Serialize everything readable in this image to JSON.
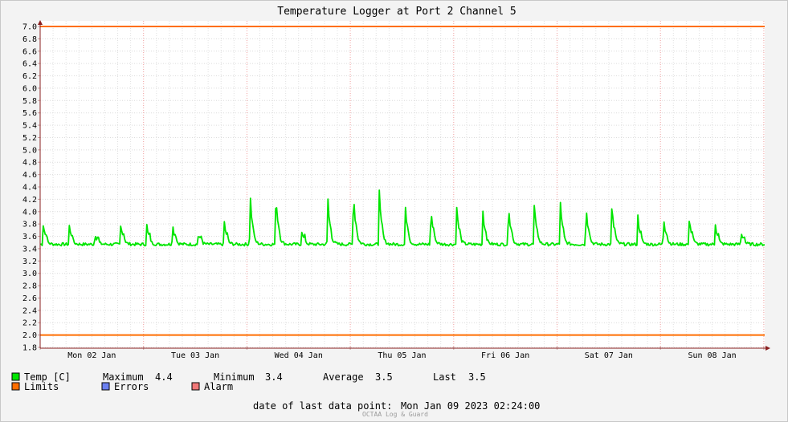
{
  "chart_data": {
    "type": "line",
    "title": "Temperature Logger at Port 2 Channel 5",
    "xlabel": "",
    "ylabel": "",
    "ylim": [
      1.8,
      7.0
    ],
    "yticks": [
      "1.8",
      "2.0",
      "2.2",
      "2.4",
      "2.6",
      "2.8",
      "3.0",
      "3.2",
      "3.4",
      "3.6",
      "3.8",
      "4.0",
      "4.2",
      "4.4",
      "4.6",
      "4.8",
      "5.0",
      "5.2",
      "5.4",
      "5.6",
      "5.8",
      "6.0",
      "6.2",
      "6.4",
      "6.6",
      "6.8",
      "7.0"
    ],
    "x_categories": [
      "Mon 02 Jan",
      "Tue 03 Jan",
      "Wed 04 Jan",
      "Thu 05 Jan",
      "Fri 06 Jan",
      "Sat 07 Jan",
      "Sun 08 Jan"
    ],
    "grid": true,
    "limits": {
      "upper": 7.0,
      "lower": 2.0
    },
    "baseline": 3.47,
    "series": [
      {
        "name": "Temp [C]",
        "color": "#00e500",
        "peak_days": [
          0.03,
          0.28,
          0.53,
          0.78,
          1.03,
          1.28,
          1.53,
          1.78,
          2.03,
          2.28,
          2.53,
          2.78,
          3.03,
          3.28,
          3.53,
          3.78,
          4.03,
          4.28,
          4.53,
          4.78,
          5.03,
          5.28,
          5.53,
          5.78,
          6.03,
          6.28,
          6.53,
          6.78
        ],
        "peak_values": [
          3.83,
          3.81,
          3.66,
          3.84,
          3.81,
          3.82,
          3.65,
          3.86,
          4.39,
          4.36,
          3.69,
          4.36,
          4.39,
          4.39,
          4.18,
          4.1,
          4.1,
          4.1,
          4.18,
          4.15,
          4.25,
          4.16,
          4.15,
          3.98,
          3.95,
          3.94,
          3.83,
          3.69
        ]
      }
    ]
  },
  "legend": {
    "temp": {
      "label": "Temp [C]",
      "color": "#00e500"
    },
    "maximum": {
      "label": "Maximum",
      "value": "4.4"
    },
    "minimum": {
      "label": "Minimum",
      "value": "3.4"
    },
    "average": {
      "label": "Average",
      "value": "3.5"
    },
    "last": {
      "label": "Last",
      "value": "3.5"
    },
    "limits": {
      "label": "Limits",
      "color": "#ff6e00"
    },
    "errors": {
      "label": "Errors",
      "color": "#6b80f0"
    },
    "alarm": {
      "label": "Alarm",
      "color": "#f07878"
    }
  },
  "footer": {
    "last_point_label": "date of last data point:",
    "last_point_value": "Mon Jan 09 2023 02:24:00",
    "watermark": "OCTAA Log & Guard"
  }
}
